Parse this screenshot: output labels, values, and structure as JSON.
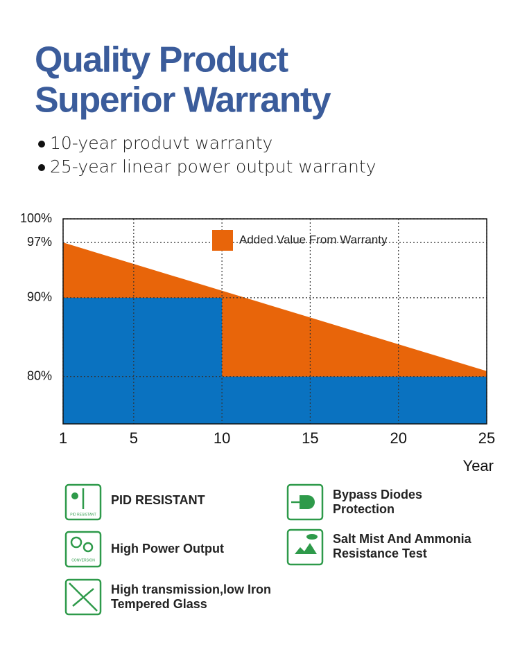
{
  "header": {
    "title_lines": [
      "Quality Product",
      "Superior Warranty"
    ],
    "bullets": [
      "10-year produvt warranty",
      "25-year linear power output warranty"
    ]
  },
  "chart_data": {
    "type": "area",
    "xlim": [
      1,
      25
    ],
    "xticks": [
      1,
      5,
      10,
      15,
      20,
      25
    ],
    "x_label": "Year",
    "ylim": [
      74,
      100
    ],
    "yticks": [
      {
        "value": 80,
        "label": "80%"
      },
      {
        "value": 90,
        "label": "90%"
      },
      {
        "value": 97,
        "label": "97%"
      },
      {
        "value": 100,
        "label": "100%"
      }
    ],
    "grid": true,
    "legend": "top-center",
    "series": [
      {
        "name": "Added Value From Warranty",
        "color": "#e8650a",
        "x": [
          1,
          25
        ],
        "values": [
          97,
          80.7
        ]
      }
    ],
    "baseline": {
      "color": "#0a72c0",
      "x": [
        1,
        10,
        10,
        25
      ],
      "values": [
        90,
        90,
        80,
        80
      ]
    }
  },
  "features": [
    {
      "icon_label": "PID RESISTANT",
      "lines": [
        "PID RESISTANT"
      ]
    },
    {
      "icon_label": "CONVERSION",
      "lines": [
        "High Power Output"
      ]
    },
    {
      "lines": [
        "High transmission,low Iron",
        "Tempered Glass"
      ]
    },
    {
      "lines": [
        "Bypass Diodes",
        "Protection"
      ]
    },
    {
      "lines": [
        "Salt Mist And Ammonia",
        "Resistance Test"
      ]
    }
  ]
}
